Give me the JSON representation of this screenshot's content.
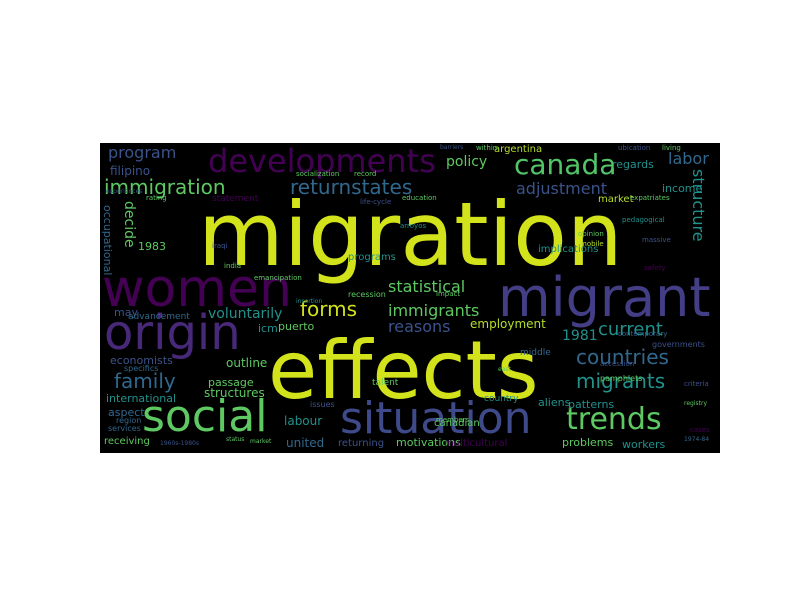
{
  "colors": {
    "background": "#ffffff",
    "cloud_background": "#000000",
    "palette": [
      "#440154",
      "#3b528b",
      "#21918c",
      "#5ec962",
      "#fde725"
    ]
  },
  "words": {
    "migration": "migration",
    "effects": "effects",
    "migrant": "migrant",
    "women": "women",
    "origin": "origin",
    "social": "social",
    "situation": "situation",
    "developments": "developments",
    "canada": "canada",
    "trends": "trends",
    "immigration": "immigration",
    "family": "family",
    "countries": "countries",
    "migrants": "migrants",
    "forms": "forms",
    "returnstates": "returnstates",
    "current": "current",
    "adjustment": "adjustment",
    "structure": "structure",
    "labor": "labor",
    "program": "program",
    "statistical": "statistical",
    "immigrants": "immigrants",
    "reasons": "reasons",
    "policy": "policy",
    "voluntarily": "voluntarily",
    "decide": "decide",
    "employment": "employment",
    "year_1981": "1981",
    "year_1983": "1983",
    "filipino": "filipino",
    "occupational": "occupational",
    "may": "may",
    "economists": "economists",
    "international": "international",
    "aspect": "aspect",
    "outline": "outline",
    "passage": "passage",
    "structures": "structures",
    "labour": "labour",
    "united": "united",
    "motivations": "motivations",
    "problems": "problems",
    "workers": "workers",
    "patterns": "patterns",
    "aliens": "aliens",
    "income": "income",
    "regards": "regards",
    "puerto": "puerto",
    "icm": "icm",
    "returning": "returning",
    "receiving": "receiving",
    "multicultural": "multicultural",
    "canadian": "canadian",
    "argentina": "argentina",
    "market": "market",
    "programs": "programs",
    "implications": "implications",
    "advancement": "advancement",
    "recession": "recession",
    "country": "country",
    "statement": "statement",
    "specifics": "specifics",
    "services": "services",
    "region": "region",
    "middle": "middle",
    "talent": "talent",
    "issues": "issues",
    "governments": "governments",
    "emancipation": "emancipation",
    "pamphlets": "pamphlets",
    "contemporary": "contemporary",
    "criteria": "criteria",
    "accession": "accession",
    "socialization": "socialization",
    "education": "education",
    "record": "record",
    "lifecycle": "life-cycle",
    "ubication": "ubication",
    "living": "living",
    "expatriates": "expatriates",
    "pedagogical": "pedagogical",
    "opinion": "opinion",
    "mobile": "mobile",
    "safety": "safety",
    "massive": "massive",
    "within": "within",
    "cases": "cases",
    "iraqi": "iraqi",
    "india": "india",
    "impact": "impact",
    "members": "members",
    "arroyos": "arroyos",
    "rating": "rating",
    "experiences": "experiences",
    "barriers": "barriers",
    "bundles": "bundles",
    "venezuela": "venezuela",
    "insertion": "insertion",
    "registry": "registry",
    "status": "status",
    "market2": "market",
    "east": "east",
    "years": "1960s-1980s",
    "cuaderno": "1974-84"
  }
}
